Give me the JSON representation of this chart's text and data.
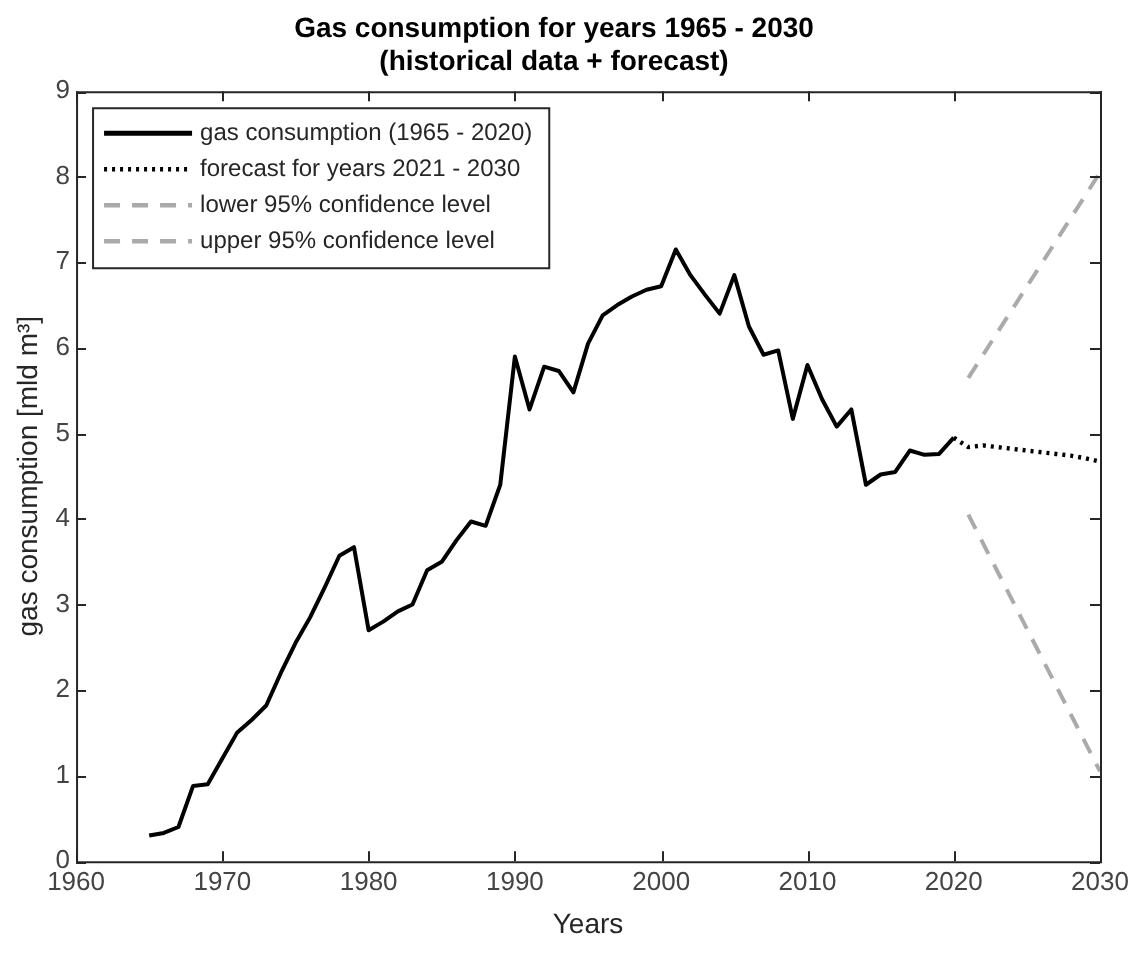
{
  "chart_data": {
    "type": "line",
    "title": "Gas consumption for years 1965 - 2030\n(historical data + forecast)",
    "xlabel": "Years",
    "ylabel": "gas consumption [mld m³]",
    "xlim": [
      1960,
      2030
    ],
    "xticks": [
      1960,
      1970,
      1980,
      1990,
      2000,
      2010,
      2020,
      2030
    ],
    "ylim": [
      0,
      9
    ],
    "yticks": [
      0,
      1,
      2,
      3,
      4,
      5,
      6,
      7,
      8,
      9
    ],
    "legend": "top left",
    "marker": "none",
    "series": [
      {
        "name": "gas consumption (1965 - 2020)",
        "color": "#000000",
        "line_style": "solid",
        "x": [
          1965,
          1966,
          1967,
          1968,
          1969,
          1970,
          1971,
          1972,
          1973,
          1974,
          1975,
          1976,
          1977,
          1978,
          1979,
          1980,
          1981,
          1982,
          1983,
          1984,
          1985,
          1986,
          1987,
          1988,
          1989,
          1990,
          1991,
          1992,
          1993,
          1994,
          1995,
          1996,
          1997,
          1998,
          1999,
          2000,
          2001,
          2002,
          2003,
          2004,
          2005,
          2006,
          2007,
          2008,
          2009,
          2010,
          2011,
          2012,
          2013,
          2014,
          2015,
          2016,
          2017,
          2018,
          2019,
          2020
        ],
        "values": [
          0.3,
          0.33,
          0.4,
          0.88,
          0.9,
          1.2,
          1.5,
          1.65,
          1.82,
          2.2,
          2.55,
          2.85,
          3.2,
          3.57,
          3.67,
          2.7,
          2.8,
          2.92,
          3.0,
          3.4,
          3.5,
          3.75,
          3.97,
          3.92,
          4.4,
          5.9,
          5.28,
          5.78,
          5.73,
          5.48,
          6.05,
          6.38,
          6.5,
          6.6,
          6.68,
          6.72,
          7.15,
          6.85,
          6.62,
          6.4,
          6.85,
          6.25,
          5.92,
          5.97,
          5.17,
          5.8,
          5.4,
          5.08,
          5.28,
          4.4,
          4.52,
          4.55,
          4.8,
          4.75,
          4.76,
          4.95
        ]
      },
      {
        "name": "forecast for years 2021 - 2030",
        "color": "#000000",
        "line_style": "dotted",
        "x": [
          2020,
          2021,
          2022,
          2023,
          2024,
          2025,
          2026,
          2027,
          2028,
          2029,
          2030
        ],
        "values": [
          4.95,
          4.84,
          4.86,
          4.84,
          4.82,
          4.8,
          4.78,
          4.76,
          4.74,
          4.71,
          4.67
        ]
      },
      {
        "name": "lower 95% confidence level",
        "color": "#aaaaaa",
        "line_style": "dashed",
        "x": [
          2021,
          2030
        ],
        "values": [
          4.05,
          1.05
        ]
      },
      {
        "name": "upper 95% confidence level",
        "color": "#aaaaaa",
        "line_style": "dashed",
        "x": [
          2021,
          2030
        ],
        "values": [
          5.65,
          8.05
        ]
      }
    ]
  }
}
